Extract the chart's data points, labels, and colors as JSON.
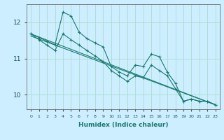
{
  "xlabel": "Humidex (Indice chaleur)",
  "bg_color": "#cceeff",
  "grid_color": "#aaddcc",
  "line_color": "#1a7a6e",
  "xlim": [
    -0.5,
    23.5
  ],
  "ylim": [
    9.6,
    12.5
  ],
  "yticks": [
    10,
    11,
    12
  ],
  "xticks": [
    0,
    1,
    2,
    3,
    4,
    5,
    6,
    7,
    8,
    9,
    10,
    11,
    12,
    13,
    14,
    15,
    16,
    17,
    18,
    19,
    20,
    21,
    22,
    23
  ],
  "series": [
    {
      "x": [
        0,
        1,
        2,
        3,
        4,
        5,
        6,
        7,
        8,
        9,
        10,
        11,
        12,
        13,
        14,
        15,
        16,
        17,
        18,
        19,
        20,
        21,
        22,
        23
      ],
      "y": [
        11.68,
        11.58,
        11.48,
        11.38,
        12.28,
        12.18,
        11.73,
        11.55,
        11.43,
        11.32,
        10.78,
        10.63,
        10.52,
        10.82,
        10.78,
        11.12,
        11.05,
        10.62,
        10.32,
        9.82,
        9.88,
        9.82,
        9.82,
        9.72
      ],
      "marker": true
    },
    {
      "x": [
        0,
        1,
        2,
        3,
        4,
        5,
        6,
        7,
        8,
        9,
        10,
        11,
        12,
        13,
        14,
        15,
        16,
        17,
        18,
        19,
        20,
        21,
        22,
        23
      ],
      "y": [
        11.68,
        11.52,
        11.37,
        11.22,
        11.68,
        11.52,
        11.37,
        11.22,
        11.07,
        10.92,
        10.67,
        10.52,
        10.37,
        10.52,
        10.47,
        10.82,
        10.67,
        10.52,
        10.17,
        9.82,
        9.88,
        9.82,
        9.82,
        9.72
      ],
      "marker": true
    },
    {
      "x": [
        0,
        23
      ],
      "y": [
        11.68,
        9.72
      ],
      "marker": false
    },
    {
      "x": [
        0,
        23
      ],
      "y": [
        11.62,
        9.72
      ],
      "marker": false
    }
  ]
}
